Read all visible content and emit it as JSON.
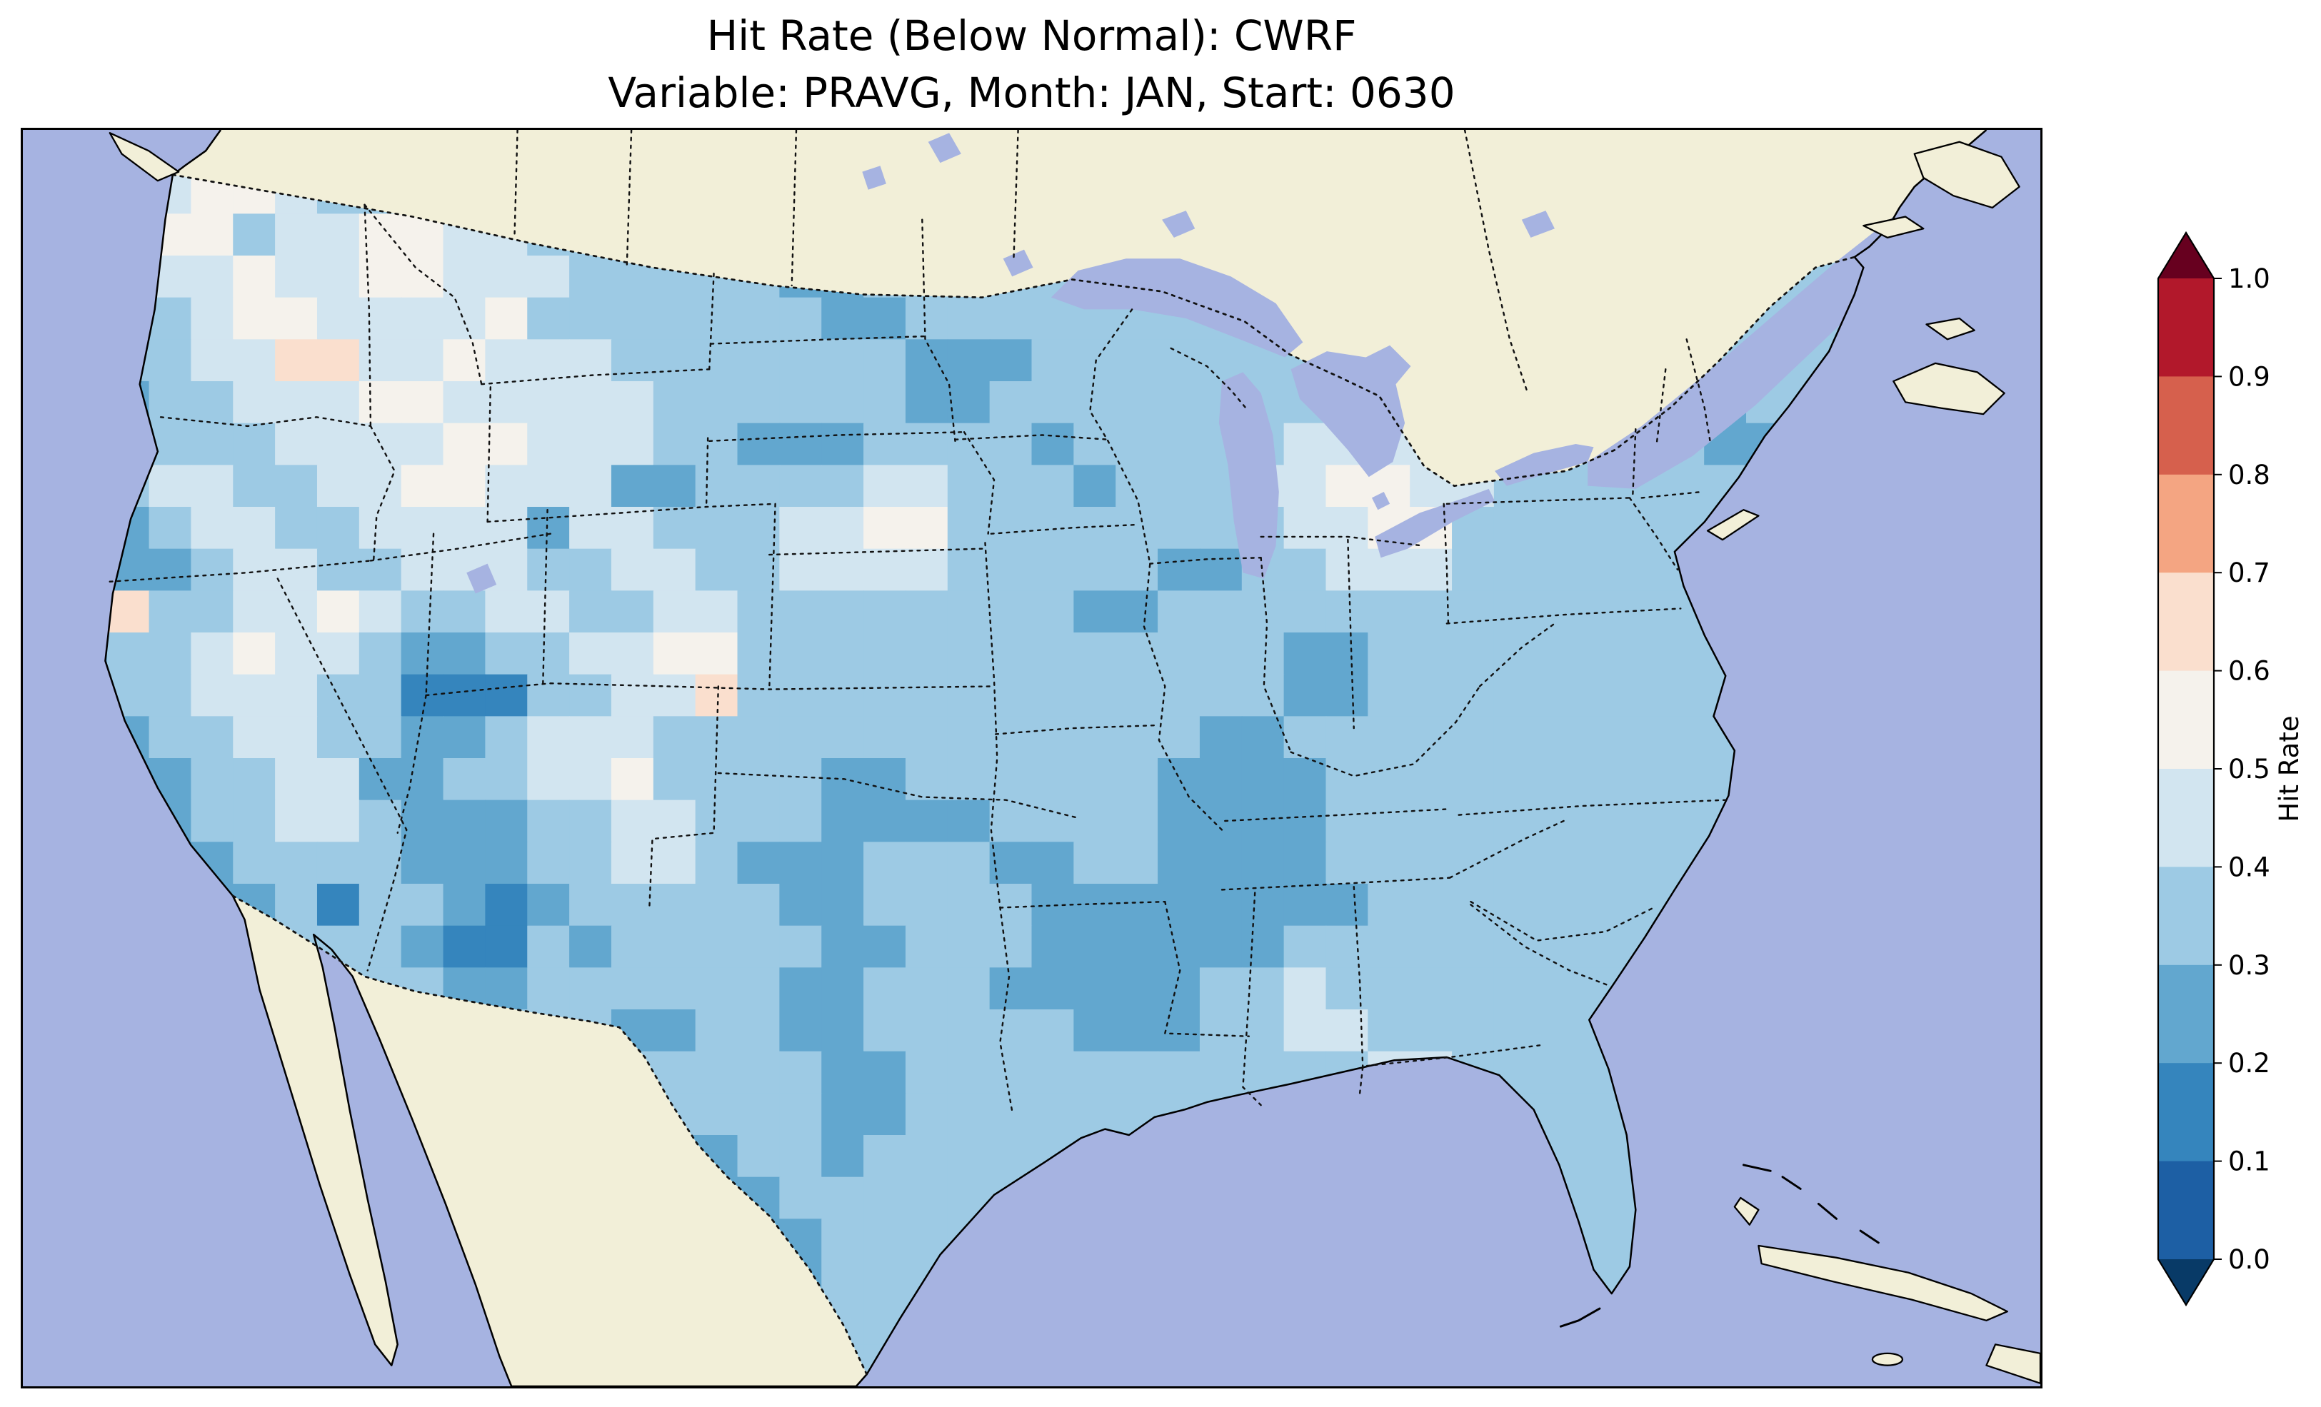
{
  "figure": {
    "title_line1": "Hit Rate (Below Normal): CWRF",
    "title_line2": "Variable: PRAVG, Month: JAN, Start: 0630"
  },
  "chart_data": {
    "type": "heatmap",
    "title": "Hit Rate (Below Normal): CWRF",
    "subtitle": "Variable: PRAVG, Month: JAN, Start: 0630",
    "metric": "Hit Rate",
    "forecast_category": "Below Normal",
    "model": "CWRF",
    "variable": "PRAVG",
    "month": "JAN",
    "start": "0630",
    "region": "Contiguous United States",
    "colorbar": {
      "label": "Hit Rate",
      "orientation": "vertical",
      "extend": "both",
      "tick_labels": [
        "1.0",
        "0.9",
        "0.8",
        "0.7",
        "0.6",
        "0.5",
        "0.4",
        "0.3",
        "0.2",
        "0.1",
        "0.0"
      ],
      "bin_edges": [
        0.0,
        0.1,
        0.2,
        0.3,
        0.4,
        0.5,
        0.6,
        0.7,
        0.8,
        0.9,
        1.0
      ],
      "bin_colors": [
        "#1d5fa4",
        "#3585bd",
        "#62a7cf",
        "#9dcae4",
        "#d2e5f0",
        "#f5f2ec",
        "#fadfce",
        "#f4a582",
        "#d6604d",
        "#b2182b"
      ],
      "under_color": "#083a67",
      "over_color": "#67001f"
    },
    "map": {
      "ocean_color": "#a6b3e1",
      "land_color": "#f2efd8",
      "coastline_color": "#000000",
      "border_style": "dotted",
      "grid": {
        "cols": 48,
        "rows": 30,
        "encoding": "digit d = hit-rate bin [d/10, d/10+0.1); cells clipped to CONUS outline",
        "rows_data": [
          "333445333334443333333333333333333333333322333333",
          "334455433444333223333333333333333333333222333333",
          "234553445544332223322333333333333333332223333333",
          "223445445544433333223333333333333333322233333333",
          "223345544445333333322333333333333334422233333333",
          "223344664454443333333222333333333444432233333333",
          "222334445544444333333223333333334444333223333333",
          "223333444455444332223333233333444443333322333333",
          "223443344554442233334433323334455443333333233333",
          "222344334444244333445533333333445533333333333333",
          "222234433444334433444433333223344433333333333333",
          "226334454334433443333333322333333333333333333333",
          "223345443223344553333333333333223333333333333333",
          "223344433111334463333333333333223333333333333333",
          "222334433223444333333333333322333333333333333333",
          "222233442233445333322333333222233333333333333333",
          "322233443222334433322223333222233333333333333333",
          "332223333222334432223332233222233333333333333333",
          "333222313321233333223333222222223333333333333333",
          "333322333211323333322333222222333333333333333333",
          "333332233322333333223332222233433333333333333333",
          "333333223333332233223333322233443333333333333333",
          "333333323333223333322333333333334433333333333333",
          "333333333333332333322333333333334333333333333333",
          "333333333333333223323333333333333433333333333333",
          "333333333333333322333333333333334433333333333333",
          "333333333333333332233333333333333433333333333333",
          "333333333333333333233333333333333343333333333333",
          "333333333333333333333333333333333333333333333333",
          "333333333333333333333333333333333333333333333333"
        ]
      }
    }
  }
}
